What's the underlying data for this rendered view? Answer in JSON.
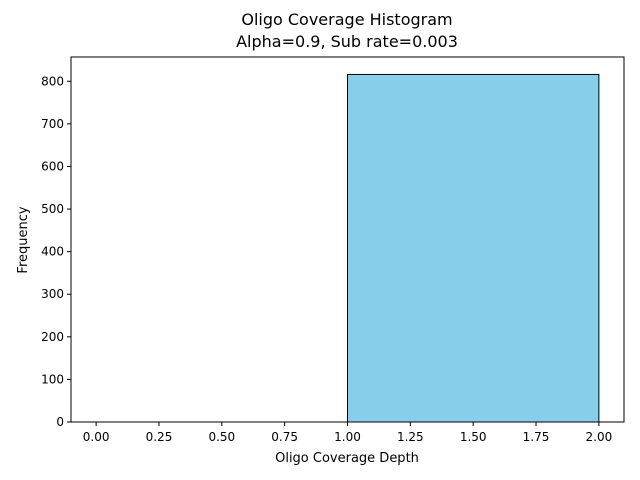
{
  "chart_data": {
    "type": "bar",
    "title": "Oligo Coverage Histogram",
    "subtitle": "Alpha=0.9, Sub rate=0.003",
    "xlabel": "Oligo Coverage Depth",
    "ylabel": "Frequency",
    "xlim": [
      -0.1,
      2.1
    ],
    "ylim": [
      0,
      857
    ],
    "bins": [
      {
        "start": 0,
        "end": 1,
        "value": 0
      },
      {
        "start": 1,
        "end": 2,
        "value": 816
      }
    ],
    "bar_color": "#87CEEB",
    "edge_color": "#000000",
    "xticks": [
      0,
      0.25,
      0.5,
      0.75,
      1,
      1.25,
      1.5,
      1.75,
      2
    ],
    "xtick_labels": [
      "0.00",
      "0.25",
      "0.50",
      "0.75",
      "1.00",
      "1.25",
      "1.50",
      "1.75",
      "2.00"
    ],
    "yticks": [
      0,
      100,
      200,
      300,
      400,
      500,
      600,
      700,
      800
    ],
    "ytick_labels": [
      "0",
      "100",
      "200",
      "300",
      "400",
      "500",
      "600",
      "700",
      "800"
    ],
    "grid": false
  }
}
